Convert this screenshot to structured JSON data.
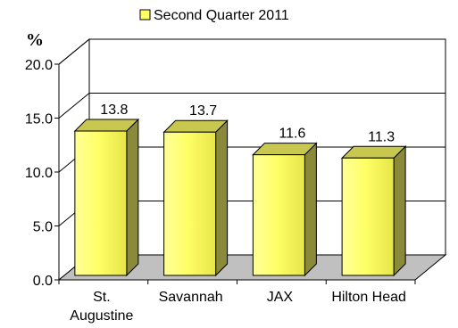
{
  "chart_data": {
    "type": "bar",
    "categories": [
      "St. Augustine",
      "Savannah",
      "JAX",
      "Hilton Head"
    ],
    "category_labels": [
      [
        "St.",
        "Augustine"
      ],
      [
        "Savannah"
      ],
      [
        "JAX"
      ],
      [
        "Hilton Head"
      ]
    ],
    "series": [
      {
        "name": "Second Quarter 2011",
        "values": [
          13.8,
          13.7,
          11.6,
          11.3
        ]
      }
    ],
    "data_labels": [
      "13.8",
      "13.7",
      "11.6",
      "11.3"
    ],
    "title": "",
    "xlabel": "",
    "ylabel": "%",
    "ylim": [
      0,
      20
    ],
    "yticks": [
      "0.0",
      "5.0",
      "10.0",
      "15.0",
      "20.0"
    ],
    "grid": true,
    "legend_position": "top-center",
    "three_d": true,
    "colors": {
      "bar_front": "#ffff66",
      "bar_top": "#c8c850",
      "bar_side": "#8a8a3a",
      "floor": "#c0c0c0",
      "gridline": "#000000"
    }
  }
}
